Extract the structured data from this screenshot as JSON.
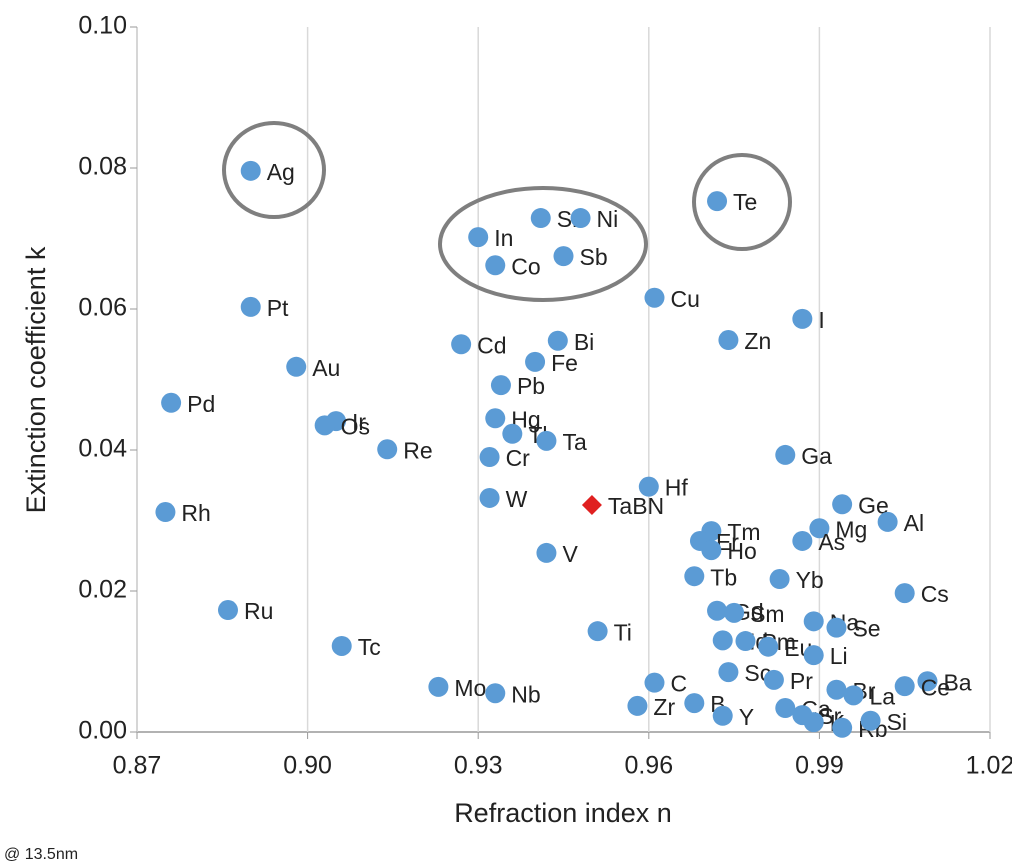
{
  "chart_data": {
    "type": "scatter",
    "x_label": "Refraction index n",
    "y_label": "Extinction coefficient k",
    "footnote": "@ 13.5nm",
    "xlim": [
      0.87,
      1.02
    ],
    "ylim": [
      0,
      0.1
    ],
    "xticks": [
      {
        "value": 0.87,
        "label": "0.87"
      },
      {
        "value": 0.9,
        "label": "0.90"
      },
      {
        "value": 0.93,
        "label": "0.93"
      },
      {
        "value": 0.96,
        "label": "0.96"
      },
      {
        "value": 0.99,
        "label": "0.99"
      },
      {
        "value": 1.02,
        "label": "1.02"
      }
    ],
    "yticks": [
      {
        "value": 0,
        "label": "0.00"
      },
      {
        "value": 0.02,
        "label": "0.02"
      },
      {
        "value": 0.04,
        "label": "0.04"
      },
      {
        "value": 0.06,
        "label": "0.06"
      },
      {
        "value": 0.08,
        "label": "0.08"
      },
      {
        "value": 0.1,
        "label": "0.10"
      }
    ],
    "grid": "x",
    "series": [
      {
        "color": "#5b9bd5",
        "marker": "circle",
        "labels": [
          "Ag",
          "Pt",
          "Au",
          "Pd",
          "Rh",
          "Ru",
          "Tc",
          "Ir",
          "Os",
          "Re",
          "Mo",
          "Nb",
          "Cd",
          "In",
          "Co",
          "Sn",
          "Ni",
          "Sb",
          "Bi",
          "Fe",
          "Pb",
          "Hg",
          "Tl",
          "Ta",
          "Cr",
          "W",
          "V",
          "Ti",
          "Cu",
          "Hf",
          "C",
          "Zr",
          "B",
          "Y",
          "Te",
          "Zn",
          "I",
          "Ga",
          "Tb",
          "Yb",
          "Tm",
          "Er",
          "Ho",
          "Gd",
          "Sm",
          "Nd",
          "Pm",
          "Eu",
          "Sc",
          "Pr",
          "Mg",
          "As",
          "Ge",
          "Al",
          "Cs",
          "Na",
          "Se",
          "Li",
          "Ba",
          "Ce",
          "Br",
          "La",
          "Ca",
          "Sr",
          "K",
          "Rb",
          "Si"
        ],
        "x": [
          0.89,
          0.89,
          0.898,
          0.876,
          0.875,
          0.886,
          0.906,
          0.905,
          0.903,
          0.914,
          0.923,
          0.933,
          0.927,
          0.93,
          0.933,
          0.941,
          0.948,
          0.945,
          0.944,
          0.94,
          0.934,
          0.933,
          0.936,
          0.942,
          0.932,
          0.932,
          0.942,
          0.951,
          0.961,
          0.96,
          0.961,
          0.958,
          0.968,
          0.973,
          0.972,
          0.974,
          0.987,
          0.984,
          0.968,
          0.983,
          0.971,
          0.969,
          0.971,
          0.972,
          0.975,
          0.973,
          0.977,
          0.981,
          0.974,
          0.982,
          0.99,
          0.987,
          0.994,
          1.002,
          1.005,
          0.989,
          0.993,
          0.989,
          1.009,
          1.005,
          0.993,
          0.996,
          0.984,
          0.987,
          0.989,
          0.994,
          0.999
        ],
        "values": [
          0.0796,
          0.0603,
          0.0518,
          0.0467,
          0.0312,
          0.0173,
          0.0122,
          0.0441,
          0.0435,
          0.0401,
          0.0064,
          0.0055,
          0.055,
          0.0702,
          0.0662,
          0.0729,
          0.0729,
          0.0675,
          0.0555,
          0.0525,
          0.0492,
          0.0445,
          0.0423,
          0.0413,
          0.039,
          0.0332,
          0.0254,
          0.0143,
          0.0616,
          0.0348,
          0.007,
          0.0037,
          0.0041,
          0.0023,
          0.0753,
          0.0556,
          0.0586,
          0.0393,
          0.0221,
          0.0217,
          0.0285,
          0.0271,
          0.0258,
          0.0172,
          0.0169,
          0.013,
          0.0129,
          0.0121,
          0.0085,
          0.0074,
          0.0289,
          0.0271,
          0.0323,
          0.0298,
          0.0197,
          0.0157,
          0.0148,
          0.0109,
          0.0072,
          0.0065,
          0.006,
          0.0052,
          0.0034,
          0.0024,
          0.0014,
          0.0006,
          0.0016
        ]
      },
      {
        "color": "#e02020",
        "marker": "diamond",
        "labels": [
          "TaBN"
        ],
        "x": [
          0.95
        ],
        "values": [
          0.0322
        ]
      }
    ]
  }
}
